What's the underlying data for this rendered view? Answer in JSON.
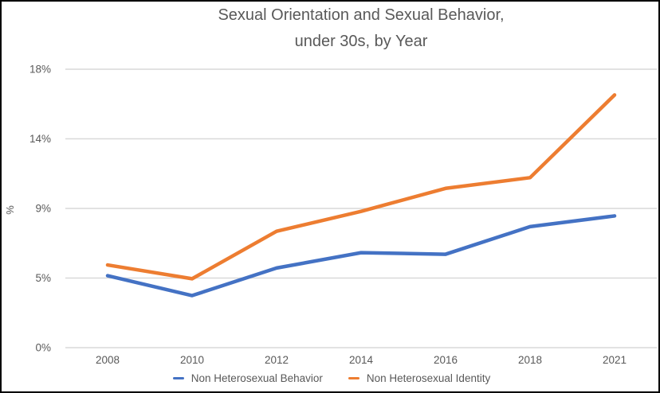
{
  "colors": {
    "behavior_line": "#4472C4",
    "identity_line": "#ED7D31",
    "gridline": "#D9D9D9",
    "text": "#595959",
    "background": "#FFFFFF",
    "border": "#000000"
  },
  "chart_data": {
    "type": "line",
    "title": "Sexual Orientation and Sexual Behavior, under 30s, by Year",
    "title_lines": [
      "Sexual Orientation and Sexual Behavior,",
      "under 30s, by Year"
    ],
    "categories": [
      "2008",
      "2010",
      "2012",
      "2014",
      "2016",
      "2018",
      "2021"
    ],
    "series": [
      {
        "name": "Non Heterosexual Behavior",
        "color": "#4472C4",
        "values": [
          4.7,
          3.4,
          5.2,
          6.2,
          6.1,
          7.9,
          8.6
        ]
      },
      {
        "name": "Non Heterosexual Identity",
        "color": "#ED7D31",
        "values": [
          5.4,
          4.5,
          7.6,
          8.9,
          10.4,
          11.1,
          16.5
        ]
      }
    ],
    "xlabel": "",
    "ylabel": "%",
    "ylim": [
      0,
      18.18
    ],
    "yticks": [
      {
        "value": 0,
        "label": "0%"
      },
      {
        "value": 4.545,
        "label": "5%"
      },
      {
        "value": 9.09,
        "label": "9%"
      },
      {
        "value": 13.636,
        "label": "14%"
      },
      {
        "value": 18.18,
        "label": "18%"
      }
    ],
    "grid": true,
    "legend_position": "bottom"
  }
}
